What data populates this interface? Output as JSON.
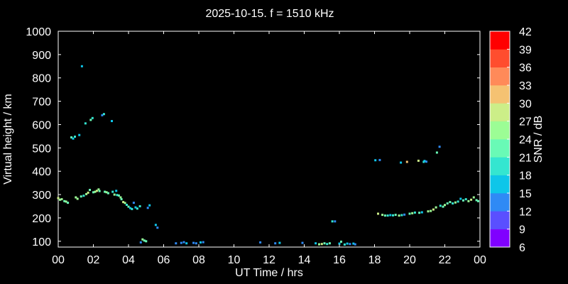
{
  "chart_data": {
    "type": "scatter",
    "title": "2025-10-15. f = 1510 kHz",
    "xlabel": "UT Time / hrs",
    "ylabel": "Virtual height / km",
    "xlim": [
      0,
      24
    ],
    "ylim": [
      75,
      1000
    ],
    "xticks": [
      "00",
      "02",
      "04",
      "06",
      "08",
      "10",
      "12",
      "14",
      "16",
      "18",
      "20",
      "22",
      "00"
    ],
    "yticks": [
      100,
      200,
      300,
      400,
      500,
      600,
      700,
      800,
      900,
      1000
    ],
    "grid": false,
    "colorbar": {
      "label": "SNR / dB",
      "min": 6,
      "max": 42,
      "ticks": [
        6,
        9,
        12,
        15,
        18,
        21,
        24,
        27,
        30,
        33,
        36,
        39,
        42
      ],
      "colors": [
        "#8000ff",
        "#5a4fff",
        "#2f8af5",
        "#0ec6e9",
        "#34e6d0",
        "#69fab6",
        "#9cfd95",
        "#ccee88",
        "#f5c272",
        "#ff8a59",
        "#ff4d2e",
        "#ff0000"
      ]
    },
    "points": [
      [
        0.0,
        285,
        27
      ],
      [
        0.1,
        278,
        25
      ],
      [
        0.2,
        280,
        24
      ],
      [
        0.35,
        272,
        22
      ],
      [
        0.45,
        270,
        24
      ],
      [
        0.55,
        265,
        21
      ],
      [
        0.75,
        545,
        21
      ],
      [
        0.85,
        540,
        15
      ],
      [
        0.95,
        548,
        19
      ],
      [
        1.0,
        288,
        24
      ],
      [
        1.1,
        282,
        26
      ],
      [
        1.2,
        555,
        15
      ],
      [
        1.3,
        292,
        22
      ],
      [
        1.35,
        850,
        15
      ],
      [
        1.45,
        295,
        20
      ],
      [
        1.55,
        605,
        19
      ],
      [
        1.6,
        302,
        24
      ],
      [
        1.7,
        308,
        27
      ],
      [
        1.8,
        320,
        22
      ],
      [
        1.85,
        620,
        21
      ],
      [
        1.95,
        628,
        18
      ],
      [
        2.0,
        310,
        21
      ],
      [
        2.1,
        312,
        24
      ],
      [
        2.2,
        316,
        27
      ],
      [
        2.3,
        322,
        25
      ],
      [
        2.35,
        315,
        21
      ],
      [
        2.5,
        640,
        12
      ],
      [
        2.6,
        645,
        18
      ],
      [
        2.65,
        312,
        21
      ],
      [
        2.75,
        310,
        24
      ],
      [
        2.85,
        306,
        22
      ],
      [
        3.05,
        615,
        15
      ],
      [
        3.1,
        312,
        19
      ],
      [
        3.2,
        300,
        24
      ],
      [
        3.3,
        316,
        15
      ],
      [
        3.35,
        298,
        18
      ],
      [
        3.45,
        296,
        21
      ],
      [
        3.55,
        288,
        24
      ],
      [
        3.6,
        280,
        22
      ],
      [
        3.7,
        268,
        27
      ],
      [
        3.8,
        264,
        25
      ],
      [
        3.9,
        256,
        18
      ],
      [
        4.0,
        248,
        21
      ],
      [
        4.1,
        242,
        15
      ],
      [
        4.2,
        238,
        19
      ],
      [
        4.3,
        265,
        12
      ],
      [
        4.4,
        245,
        15
      ],
      [
        4.5,
        240,
        18
      ],
      [
        4.65,
        250,
        19
      ],
      [
        4.7,
        95,
        12
      ],
      [
        4.8,
        108,
        24
      ],
      [
        4.9,
        103,
        22
      ],
      [
        5.0,
        100,
        21
      ],
      [
        5.1,
        243,
        12
      ],
      [
        5.2,
        254,
        15
      ],
      [
        5.55,
        170,
        15
      ],
      [
        5.65,
        158,
        12
      ],
      [
        6.7,
        91,
        12
      ],
      [
        7.0,
        93,
        12
      ],
      [
        7.15,
        96,
        12
      ],
      [
        7.3,
        91,
        15
      ],
      [
        7.7,
        93,
        12
      ],
      [
        7.85,
        91,
        12
      ],
      [
        8.1,
        95,
        15
      ],
      [
        8.25,
        96,
        12
      ],
      [
        11.5,
        95,
        12
      ],
      [
        12.35,
        91,
        12
      ],
      [
        12.6,
        93,
        15
      ],
      [
        13.9,
        93,
        12
      ],
      [
        14.65,
        91,
        15
      ],
      [
        14.85,
        87,
        24
      ],
      [
        15.0,
        88,
        27
      ],
      [
        15.15,
        91,
        21
      ],
      [
        15.3,
        88,
        18
      ],
      [
        15.45,
        91,
        22
      ],
      [
        15.6,
        185,
        18
      ],
      [
        15.75,
        185,
        12
      ],
      [
        16.0,
        90,
        15
      ],
      [
        16.1,
        98,
        21
      ],
      [
        16.3,
        86,
        18
      ],
      [
        16.45,
        90,
        15
      ],
      [
        16.6,
        88,
        12
      ],
      [
        16.8,
        90,
        15
      ],
      [
        16.9,
        87,
        12
      ],
      [
        18.05,
        447,
        15
      ],
      [
        18.2,
        218,
        27
      ],
      [
        18.3,
        448,
        12
      ],
      [
        18.45,
        213,
        24
      ],
      [
        18.6,
        210,
        21
      ],
      [
        18.75,
        210,
        18
      ],
      [
        18.9,
        212,
        15
      ],
      [
        19.05,
        211,
        18
      ],
      [
        19.2,
        213,
        21
      ],
      [
        19.4,
        210,
        24
      ],
      [
        19.5,
        437,
        15
      ],
      [
        19.55,
        212,
        19
      ],
      [
        19.7,
        214,
        12
      ],
      [
        19.85,
        440,
        30
      ],
      [
        20.0,
        218,
        21
      ],
      [
        20.15,
        220,
        24
      ],
      [
        20.3,
        223,
        18
      ],
      [
        20.5,
        445,
        27
      ],
      [
        20.55,
        222,
        21
      ],
      [
        20.7,
        224,
        15
      ],
      [
        20.8,
        440,
        18
      ],
      [
        20.85,
        444,
        15
      ],
      [
        20.95,
        441,
        12
      ],
      [
        21.05,
        228,
        24
      ],
      [
        21.2,
        230,
        26
      ],
      [
        21.35,
        236,
        27
      ],
      [
        21.5,
        245,
        24
      ],
      [
        21.55,
        480,
        21
      ],
      [
        21.7,
        505,
        12
      ],
      [
        21.75,
        252,
        18
      ],
      [
        21.9,
        248,
        21
      ],
      [
        22.0,
        255,
        24
      ],
      [
        22.15,
        262,
        22
      ],
      [
        22.3,
        268,
        21
      ],
      [
        22.45,
        262,
        18
      ],
      [
        22.6,
        266,
        24
      ],
      [
        22.75,
        270,
        19
      ],
      [
        22.9,
        282,
        15
      ],
      [
        23.05,
        275,
        21
      ],
      [
        23.2,
        280,
        18
      ],
      [
        23.35,
        272,
        24
      ],
      [
        23.5,
        278,
        27
      ],
      [
        23.65,
        288,
        24
      ],
      [
        23.8,
        276,
        21
      ],
      [
        23.9,
        272,
        22
      ]
    ]
  }
}
